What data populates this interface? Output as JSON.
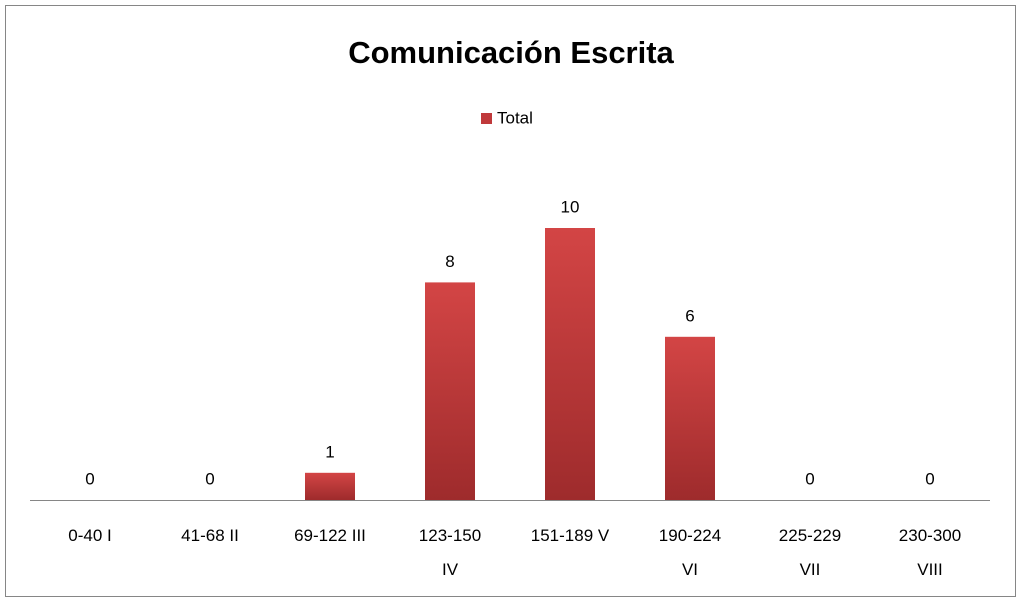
{
  "chart_data": {
    "type": "bar",
    "title": "Comunicación Escrita",
    "categories": [
      "0-40  I",
      "41-68  II",
      "69-122  III",
      "123-150\nIV",
      "151-189  V",
      "190-224\nVI",
      "225-229\nVII",
      "230-300\nVIII"
    ],
    "series": [
      {
        "name": "Total",
        "color": "#c0393b",
        "values": [
          0,
          0,
          1,
          8,
          10,
          6,
          0,
          0
        ]
      }
    ],
    "ylim": [
      0,
      12
    ],
    "legend": "top"
  }
}
